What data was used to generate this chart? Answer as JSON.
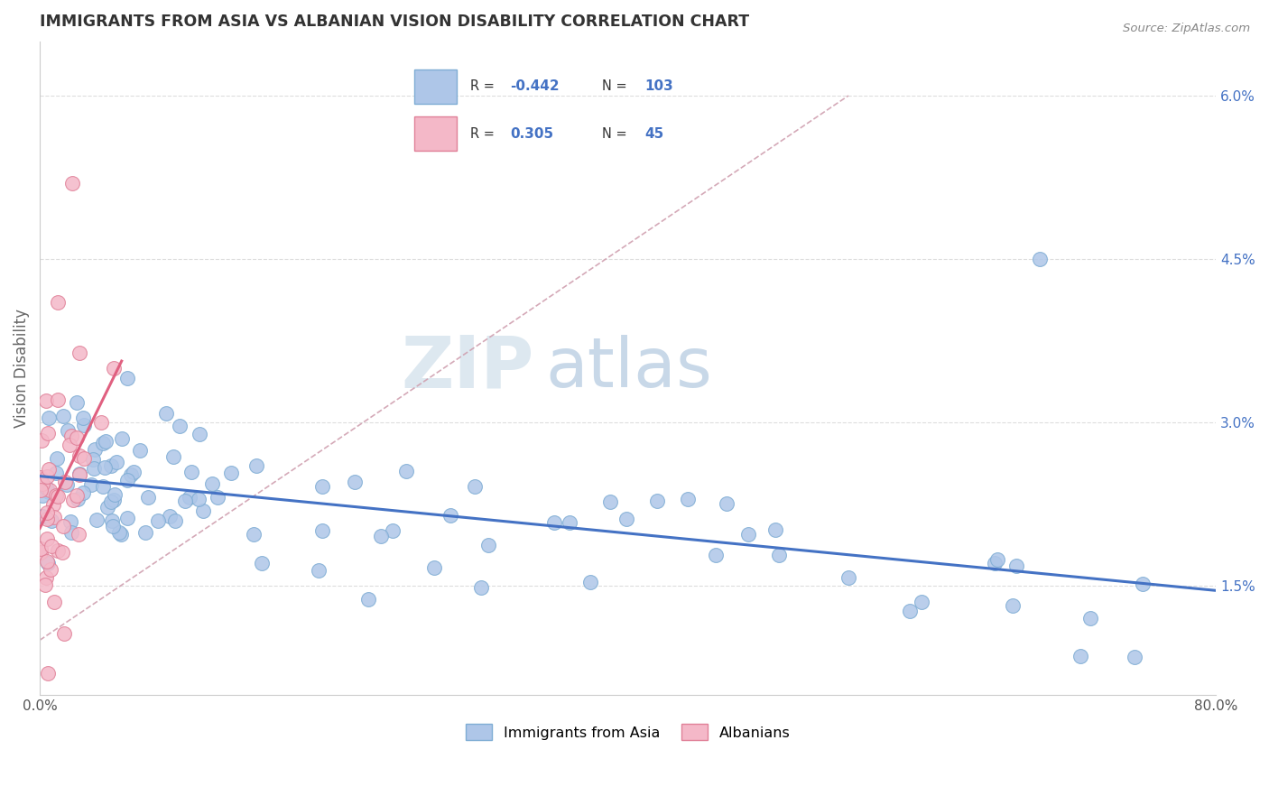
{
  "title": "IMMIGRANTS FROM ASIA VS ALBANIAN VISION DISABILITY CORRELATION CHART",
  "source": "Source: ZipAtlas.com",
  "ylabel": "Vision Disability",
  "xmin": 0.0,
  "xmax": 80.0,
  "ymin": 0.5,
  "ymax": 6.5,
  "yticks": [
    1.5,
    3.0,
    4.5,
    6.0
  ],
  "ytick_labels": [
    "1.5%",
    "3.0%",
    "4.5%",
    "6.0%"
  ],
  "legend_R_blue": "-0.442",
  "legend_N_blue": "103",
  "legend_R_pink": "0.305",
  "legend_N_pink": "45",
  "label_blue": "Immigrants from Asia",
  "label_pink": "Albanians",
  "blue_color": "#aec6e8",
  "blue_edge": "#7fadd4",
  "blue_line": "#4472c4",
  "pink_color": "#f4b8c8",
  "pink_edge": "#e08098",
  "pink_line": "#e06080",
  "ref_line_color": "#d0a0b0",
  "title_color": "#333333",
  "source_color": "#888888",
  "ylabel_color": "#666666",
  "tick_color": "#4472c4",
  "grid_color": "#dddddd",
  "watermark_zip_color": "#dde8f0",
  "watermark_atlas_color": "#c8d8e8"
}
